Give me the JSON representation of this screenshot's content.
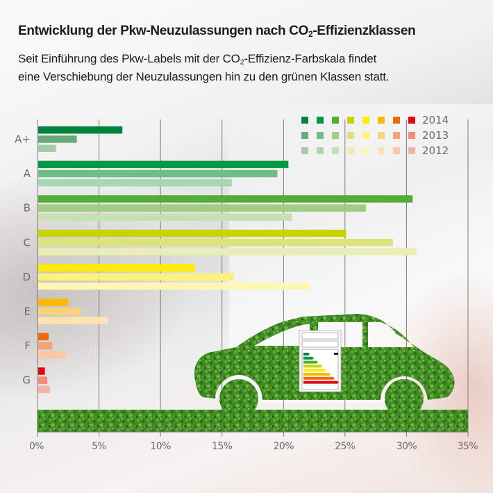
{
  "header": {
    "title_pre": "Entwicklung der Pkw-Neuzulassungen nach CO",
    "title_sub": "2",
    "title_post": "-Effizienzklassen",
    "subtitle_line1_pre": "Seit Einführung des Pkw-Labels mit der CO",
    "subtitle_line1_sub": "2",
    "subtitle_line1_post": "-Effizienz-Farbskala findet",
    "subtitle_line2": "eine Verschiebung der Neuzulassungen hin zu den grünen Klassen statt."
  },
  "chart_data": {
    "type": "bar",
    "orientation": "horizontal",
    "title": "Entwicklung der Pkw-Neuzulassungen nach CO2-Effizienzklassen",
    "xlabel": "",
    "ylabel": "",
    "xlim": [
      0,
      35
    ],
    "x_ticks": [
      0,
      5,
      10,
      15,
      20,
      25,
      30,
      35
    ],
    "x_tick_labels": [
      "0%",
      "5%",
      "10%",
      "15%",
      "20%",
      "25%",
      "30%",
      "35%"
    ],
    "grid": "vertical",
    "legend_position": "top-right",
    "categories": [
      "A+",
      "A",
      "B",
      "C",
      "D",
      "E",
      "F",
      "G"
    ],
    "series": [
      {
        "name": "2014",
        "values": [
          6.9,
          20.4,
          30.5,
          25.1,
          12.8,
          2.5,
          0.9,
          0.6
        ],
        "colors": [
          "#00843d",
          "#009a44",
          "#52ae32",
          "#c8d400",
          "#ffed00",
          "#fbba00",
          "#eb6909",
          "#e30613"
        ]
      },
      {
        "name": "2013",
        "values": [
          3.2,
          19.5,
          26.7,
          28.9,
          16.0,
          3.5,
          1.2,
          0.8
        ],
        "colors": [
          "#6aaa7a",
          "#6dbf86",
          "#9fcd82",
          "#dde27c",
          "#fff27a",
          "#fdd27a",
          "#f4a470",
          "#f28c78"
        ]
      },
      {
        "name": "2012",
        "values": [
          1.5,
          15.8,
          20.7,
          30.8,
          22.1,
          5.7,
          2.3,
          1.0
        ],
        "colors": [
          "#a6ccae",
          "#a8d7b2",
          "#c6e0b4",
          "#eaedb4",
          "#fff6b4",
          "#fee2b0",
          "#f9c8a4",
          "#f6b4a4"
        ]
      }
    ]
  },
  "illustration": {
    "name": "grass-car-with-co2-label",
    "label_class_colors": [
      "#00843d",
      "#009a44",
      "#52ae32",
      "#c8d400",
      "#ffed00",
      "#fbba00",
      "#eb6909",
      "#e30613"
    ]
  }
}
